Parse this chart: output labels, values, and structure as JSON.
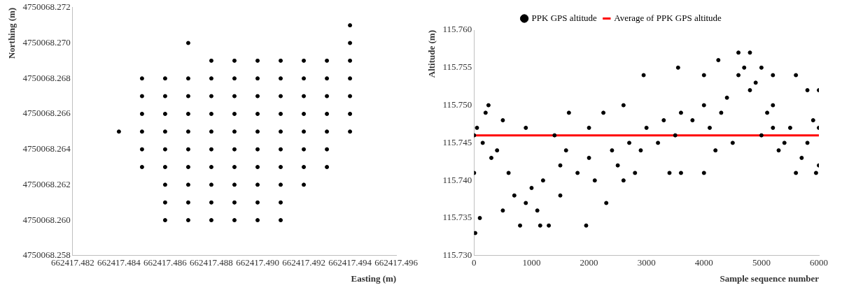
{
  "chart_data": [
    {
      "type": "scatter",
      "xlabel": "Easting (m)",
      "ylabel": "Northing (m)",
      "marker": "circle",
      "grid": false,
      "legend": false,
      "xlim": [
        662417.482,
        662417.496
      ],
      "xticks": [
        662417.482,
        662417.484,
        662417.486,
        662417.488,
        {
          "value": 662417.49,
          "label": "662417.490"
        },
        662417.492,
        662417.494,
        662417.496
      ],
      "ylim": [
        4750068.258,
        4750068.272
      ],
      "yticks": [
        4750068.258,
        {
          "value": 4750068.26,
          "label": "4750068.260"
        },
        4750068.262,
        4750068.264,
        4750068.266,
        4750068.268,
        {
          "value": 4750068.27,
          "label": "4750068.270"
        },
        4750068.272
      ],
      "series": [
        {
          "color": "#000000",
          "x": [
            662417.494,
            662417.487,
            662417.494,
            662417.488,
            662417.489,
            662417.49,
            662417.491,
            662417.492,
            662417.493,
            662417.494,
            662417.485,
            662417.486,
            662417.487,
            662417.488,
            662417.489,
            662417.49,
            662417.491,
            662417.492,
            662417.493,
            662417.494,
            662417.485,
            662417.486,
            662417.487,
            662417.488,
            662417.489,
            662417.49,
            662417.491,
            662417.492,
            662417.493,
            662417.494,
            662417.485,
            662417.486,
            662417.487,
            662417.488,
            662417.489,
            662417.49,
            662417.491,
            662417.492,
            662417.493,
            662417.494,
            662417.484,
            662417.485,
            662417.486,
            662417.487,
            662417.488,
            662417.489,
            662417.49,
            662417.491,
            662417.492,
            662417.493,
            662417.494,
            662417.485,
            662417.486,
            662417.487,
            662417.488,
            662417.489,
            662417.49,
            662417.491,
            662417.492,
            662417.493,
            662417.485,
            662417.486,
            662417.487,
            662417.488,
            662417.489,
            662417.49,
            662417.491,
            662417.492,
            662417.493,
            662417.486,
            662417.487,
            662417.488,
            662417.489,
            662417.49,
            662417.491,
            662417.492,
            662417.486,
            662417.487,
            662417.488,
            662417.489,
            662417.49,
            662417.491,
            662417.486,
            662417.487,
            662417.488,
            662417.489,
            662417.49,
            662417.491
          ],
          "values": [
            4750068.271,
            4750068.27,
            4750068.27,
            4750068.269,
            4750068.269,
            4750068.269,
            4750068.269,
            4750068.269,
            4750068.269,
            4750068.269,
            4750068.268,
            4750068.268,
            4750068.268,
            4750068.268,
            4750068.268,
            4750068.268,
            4750068.268,
            4750068.268,
            4750068.268,
            4750068.268,
            4750068.267,
            4750068.267,
            4750068.267,
            4750068.267,
            4750068.267,
            4750068.267,
            4750068.267,
            4750068.267,
            4750068.267,
            4750068.267,
            4750068.266,
            4750068.266,
            4750068.266,
            4750068.266,
            4750068.266,
            4750068.266,
            4750068.266,
            4750068.266,
            4750068.266,
            4750068.266,
            4750068.265,
            4750068.265,
            4750068.265,
            4750068.265,
            4750068.265,
            4750068.265,
            4750068.265,
            4750068.265,
            4750068.265,
            4750068.265,
            4750068.265,
            4750068.264,
            4750068.264,
            4750068.264,
            4750068.264,
            4750068.264,
            4750068.264,
            4750068.264,
            4750068.264,
            4750068.264,
            4750068.263,
            4750068.263,
            4750068.263,
            4750068.263,
            4750068.263,
            4750068.263,
            4750068.263,
            4750068.263,
            4750068.263,
            4750068.262,
            4750068.262,
            4750068.262,
            4750068.262,
            4750068.262,
            4750068.262,
            4750068.262,
            4750068.261,
            4750068.261,
            4750068.261,
            4750068.261,
            4750068.261,
            4750068.261,
            4750068.26,
            4750068.26,
            4750068.26,
            4750068.26,
            4750068.26,
            4750068.26
          ]
        }
      ]
    },
    {
      "type": "scatter",
      "xlabel": "Sample sequence number",
      "ylabel": "Altitude (m)",
      "grid": false,
      "legend": "top",
      "xlim": [
        0,
        6000
      ],
      "xticks": [
        0,
        1000,
        2000,
        3000,
        4000,
        5000,
        6000
      ],
      "ylim": [
        115.73,
        115.76
      ],
      "yticks": [
        {
          "value": 115.73,
          "label": "115.730"
        },
        115.735,
        {
          "value": 115.74,
          "label": "115.740"
        },
        115.745,
        {
          "value": 115.75,
          "label": "115.750"
        },
        115.755,
        {
          "value": 115.76,
          "label": "115.760"
        }
      ],
      "series": [
        {
          "name": "PPK GPS altitude",
          "color": "#000000",
          "marker": "circle",
          "x": [
            0,
            50,
            200,
            250,
            500,
            900,
            1400,
            1650,
            2000,
            2250,
            2600,
            2950,
            3550,
            4000,
            4250,
            4600,
            4800,
            5000,
            5200,
            5600,
            5800,
            6000,
            20,
            100,
            500,
            800,
            1150,
            1300,
            1500,
            1950,
            2300,
            2600,
            2800,
            3400,
            3600,
            4000,
            4200,
            4500,
            5000,
            5200,
            5300,
            5600,
            5950,
            6000,
            0,
            300,
            600,
            1000,
            1200,
            1500,
            1800,
            2000,
            2400,
            2700,
            3000,
            3300,
            3600,
            4000,
            4400,
            4800,
            5200,
            5500,
            5800,
            6000,
            150,
            400,
            700,
            900,
            1100,
            1600,
            2100,
            2500,
            2900,
            3200,
            3500,
            3800,
            4100,
            4300,
            4600,
            4700,
            4900,
            5100,
            5400,
            5700,
            5900
          ],
          "values": [
            115.746,
            115.747,
            115.749,
            115.75,
            115.748,
            115.747,
            115.746,
            115.749,
            115.747,
            115.749,
            115.75,
            115.754,
            115.755,
            115.754,
            115.756,
            115.757,
            115.757,
            115.755,
            115.754,
            115.754,
            115.752,
            115.752,
            115.733,
            115.735,
            115.736,
            115.734,
            115.734,
            115.734,
            115.738,
            115.734,
            115.737,
            115.74,
            115.741,
            115.741,
            115.741,
            115.741,
            115.744,
            115.745,
            115.746,
            115.747,
            115.744,
            115.741,
            115.741,
            115.742,
            115.741,
            115.743,
            115.741,
            115.739,
            115.74,
            115.742,
            115.741,
            115.743,
            115.744,
            115.745,
            115.747,
            115.748,
            115.749,
            115.75,
            115.751,
            115.752,
            115.75,
            115.747,
            115.745,
            115.747,
            115.745,
            115.744,
            115.738,
            115.737,
            115.736,
            115.744,
            115.74,
            115.742,
            115.744,
            115.745,
            115.746,
            115.748,
            115.747,
            115.749,
            115.754,
            115.755,
            115.753,
            115.749,
            115.745,
            115.743,
            115.748
          ]
        },
        {
          "type": "line",
          "name": "Average of PPK GPS altitude",
          "color": "#ff0000",
          "marker": "none",
          "x": [
            0,
            6000
          ],
          "values": [
            115.746,
            115.746
          ]
        }
      ]
    }
  ]
}
